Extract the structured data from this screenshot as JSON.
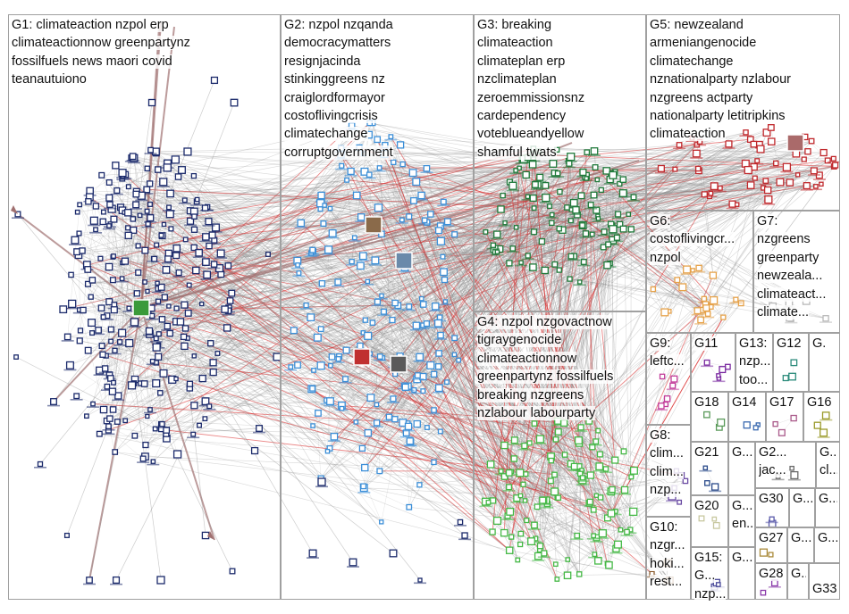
{
  "groups": [
    {
      "id": "G1",
      "label": "G1: climateaction nzpol erp\nclimateactionnow greenpartynz\nfossilfuels news maori covid\nteanautuiono",
      "color": "#1b2a6b"
    },
    {
      "id": "G2",
      "label": "G2: nzpol nzqanda\ndemocracymatters\nresignjacinda\nstinkinggreens nz\ncraiglordformayor\ncostoflivingcrisis\nclimatechange\ncorruptgovernment",
      "color": "#3c8fd8"
    },
    {
      "id": "G3",
      "label": "G3: breaking\nclimateaction\nclimateplan erp\nnzclimateplan\nzeroemmissionsnz\ncardependency\nvoteblueandyellow\nshamful twats",
      "color": "#1f7a3a"
    },
    {
      "id": "G4",
      "label": "G4: nzpol nzgovactnow\ntigraygenocide\nclimateactionnow\ngreenpartynz fossilfuels\nbreaking nzgreens\nnzlabour labourparty",
      "color": "#44b845"
    },
    {
      "id": "G5",
      "label": "G5: newzealand\narmeniangenocide\nclimatechange\nnznationalparty nzlabour\nnzgreens actparty\nnationalparty letitripkins\nclimateaction",
      "color": "#c0282c"
    },
    {
      "id": "G6",
      "label": "G6:\ncostoflivingcr...\nnzpol",
      "color": "#e6a24a"
    },
    {
      "id": "G7",
      "label": "G7:\nnzgreens\ngreenparty\nnewzeala...\nclimateact...\nclimate...",
      "color": "#b9b9b9"
    },
    {
      "id": "G8",
      "label": "G8:\nclim...\nclim...\nnzp...",
      "color": "#6a4aa3"
    },
    {
      "id": "G9",
      "label": "G9:\nleftc...",
      "color": "#c23c9a"
    },
    {
      "id": "G10",
      "label": "G10:\nnzgr...\nhoki...\nrest...",
      "color": "#8a5a2b"
    },
    {
      "id": "G11",
      "label": "G11",
      "color": "#7a2aa0"
    },
    {
      "id": "G12",
      "label": "G12",
      "color": "#2a8a7a"
    },
    {
      "id": "G13",
      "label": "G13:\nnzp...\ntoo...",
      "color": "#555555"
    },
    {
      "id": "G14",
      "label": "G14",
      "color": "#3a6ab0"
    },
    {
      "id": "G15",
      "label": "G15: G...\nnzp...",
      "color": "#4a4a9a"
    },
    {
      "id": "G16",
      "label": "G16",
      "color": "#9a9a2a"
    },
    {
      "id": "G17",
      "label": "G17",
      "color": "#aa5a8a"
    },
    {
      "id": "G18",
      "label": "G18",
      "color": "#5a9a5a"
    },
    {
      "id": "G20",
      "label": "G20",
      "color": "#c8c8a0"
    },
    {
      "id": "G21",
      "label": "G21",
      "color": "#2a4a8a"
    },
    {
      "id": "G22",
      "label": "G...\nen...",
      "color": "#888888"
    },
    {
      "id": "G23",
      "label": "G...",
      "color": "#7a7a7a"
    },
    {
      "id": "G24",
      "label": "G2...\njac...",
      "color": "#6a6a6a"
    },
    {
      "id": "G25",
      "label": "G...\ncl...",
      "color": "#9a6a3a"
    },
    {
      "id": "G26",
      "label": "G...",
      "color": "#6a9aaa"
    },
    {
      "id": "G27",
      "label": "G27",
      "color": "#aa8a3a"
    },
    {
      "id": "G28",
      "label": "G28",
      "color": "#8a3aaa"
    },
    {
      "id": "G29",
      "label": "G...",
      "color": "#3aaa8a"
    },
    {
      "id": "G30",
      "label": "G30",
      "color": "#5a5aaa"
    },
    {
      "id": "G31",
      "label": "G...",
      "color": "#aa5a5a"
    },
    {
      "id": "G32",
      "label": "G...",
      "color": "#5aaa5a"
    },
    {
      "id": "G33",
      "label": "G33",
      "color": "#aaaa5a"
    },
    {
      "id": "G34",
      "label": "G...",
      "color": "#777777"
    },
    {
      "id": "G35",
      "label": "G...",
      "color": "#557799"
    },
    {
      "id": "G36",
      "label": "G...",
      "color": "#997755"
    },
    {
      "id": "G37",
      "label": "G...",
      "color": "#775599"
    },
    {
      "id": "G38",
      "label": "G.",
      "color": "#559977"
    },
    {
      "id": "G39",
      "label": "G...",
      "color": "#999999"
    }
  ],
  "colors": {
    "edge": "#8e8e8e",
    "edge_highlight": "#d92020",
    "edge_hub": "#a07070",
    "box_border": "#a0a0a0"
  }
}
